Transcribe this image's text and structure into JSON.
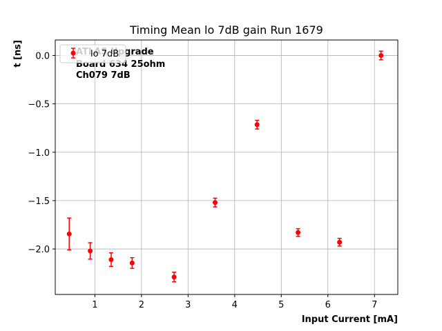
{
  "chart_data": {
    "type": "scatter",
    "title": "Timing Mean lo 7dB gain Run 1679",
    "xlabel": "Input Current [mA]",
    "ylabel": "t [ns]",
    "xlim": [
      0.15,
      7.5
    ],
    "ylim": [
      -2.47,
      0.16
    ],
    "xticks": [
      1,
      2,
      3,
      4,
      5,
      6,
      7
    ],
    "xtick_labels": [
      "1",
      "2",
      "3",
      "4",
      "5",
      "6",
      "7"
    ],
    "yticks": [
      0.0,
      -0.5,
      -1.0,
      -1.5,
      -2.0
    ],
    "ytick_labels": [
      "0.0",
      "−0.5",
      "−1.0",
      "−1.5",
      "−2.0"
    ],
    "grid": true,
    "legend_position": "top-left",
    "annotations": [
      "ATLAS Upgrade",
      "Board 634 25ohm",
      "Ch079 7dB"
    ],
    "series": [
      {
        "name": "lo 7dB",
        "color": "#ff0000",
        "x": [
          0.45,
          0.9,
          1.35,
          1.8,
          2.7,
          3.58,
          4.48,
          5.36,
          6.25,
          7.14
        ],
        "y": [
          -1.845,
          -2.02,
          -2.11,
          -2.145,
          -2.29,
          -1.52,
          -0.715,
          -1.83,
          -1.93,
          0.0
        ],
        "yerr": [
          0.165,
          0.085,
          0.07,
          0.055,
          0.05,
          0.045,
          0.045,
          0.04,
          0.04,
          0.045
        ]
      }
    ]
  }
}
